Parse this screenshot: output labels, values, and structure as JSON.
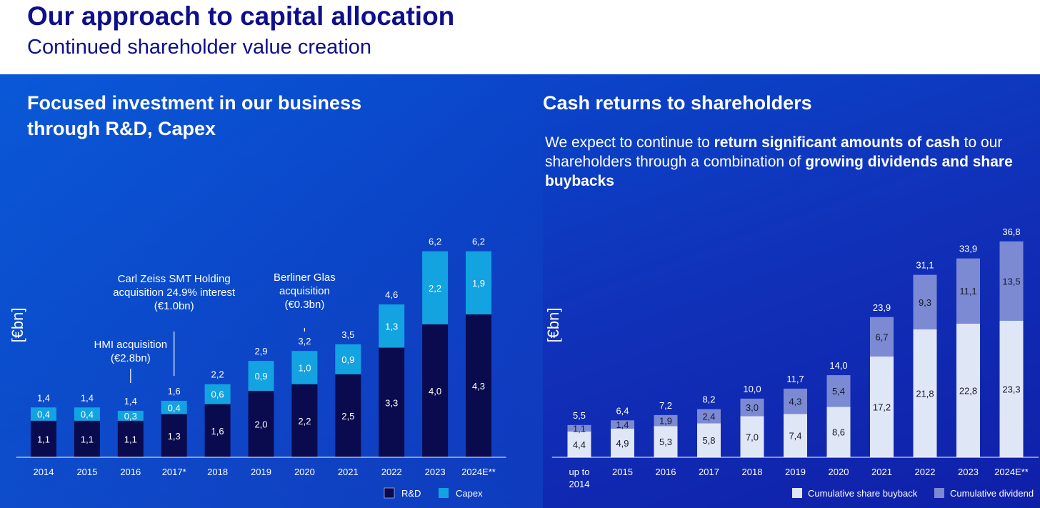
{
  "header": {
    "title": "Our approach to capital allocation",
    "subtitle": "Continued shareholder value creation"
  },
  "left": {
    "heading_line1": "Focused investment in our business",
    "heading_line2": "through R&D, Capex"
  },
  "right": {
    "heading": "Cash returns to shareholders",
    "para_1": "We expect to continue to ",
    "para_bold_1": "return significant amounts of cash",
    "para_2": " to our shareholders through a combination of ",
    "para_bold_2": "growing dividends and share buybacks"
  },
  "colors": {
    "rd": "#0a0b4e",
    "capex": "#12a3e0",
    "buyback": "#dfe6f5",
    "dividend": "#7b8ad2"
  },
  "chart_data": [
    {
      "type": "bar",
      "stacked": true,
      "ylabel": "[€bn]",
      "categories": [
        "2014",
        "2015",
        "2016",
        "2017*",
        "2018",
        "2019",
        "2020",
        "2021",
        "2022",
        "2023",
        "2024E**"
      ],
      "series": [
        {
          "name": "R&D",
          "values": [
            1.1,
            1.1,
            1.1,
            1.3,
            1.6,
            2.0,
            2.2,
            2.5,
            3.3,
            4.0,
            4.3
          ],
          "labels": [
            "1,1",
            "1,1",
            "1,1",
            "1,3",
            "1,6",
            "2,0",
            "2,2",
            "2,5",
            "3,3",
            "4,0",
            "4,3"
          ]
        },
        {
          "name": "Capex",
          "values": [
            0.4,
            0.4,
            0.3,
            0.4,
            0.6,
            0.9,
            1.0,
            0.9,
            1.3,
            2.2,
            1.9
          ],
          "labels": [
            "0,4",
            "0,4",
            "0,3",
            "0,4",
            "0,6",
            "0,9",
            "1,0",
            "0,9",
            "1,3",
            "2,2",
            "1,9"
          ]
        }
      ],
      "totals": [
        "1,4",
        "1,4",
        "1,4",
        "1,6",
        "2,2",
        "2,9",
        "3,2",
        "3,5",
        "4,6",
        "6,2",
        "6,2"
      ],
      "total_values": [
        1.4,
        1.4,
        1.4,
        1.6,
        2.2,
        2.9,
        3.2,
        3.5,
        4.6,
        6.2,
        6.2
      ],
      "annotations": [
        {
          "category": "2016",
          "lines": [
            "HMI acquisition",
            "(€2.8bn)"
          ]
        },
        {
          "category": "2017*",
          "lines": [
            "Carl Zeiss SMT Holding",
            "acquisition 24.9% interest",
            "(€1.0bn)"
          ]
        },
        {
          "category": "2020",
          "lines": [
            "Berliner Glas",
            "acquisition",
            "(€0.3bn)"
          ]
        }
      ],
      "legend": [
        "R&D",
        "Capex"
      ]
    },
    {
      "type": "bar",
      "stacked": true,
      "ylabel": "[€bn]",
      "categories": [
        [
          "up to",
          "2014"
        ],
        [
          "2015"
        ],
        [
          "2016"
        ],
        [
          "2017"
        ],
        [
          "2018"
        ],
        [
          "2019"
        ],
        [
          "2020"
        ],
        [
          "2021"
        ],
        [
          "2022"
        ],
        [
          "2023"
        ],
        [
          "2024E**"
        ]
      ],
      "series": [
        {
          "name": "Cumulative share buyback",
          "values": [
            4.4,
            4.9,
            5.3,
            5.8,
            7.0,
            7.4,
            8.6,
            17.2,
            21.8,
            22.8,
            23.3
          ],
          "labels": [
            "4,4",
            "4,9",
            "5,3",
            "5,8",
            "7,0",
            "7,4",
            "8,6",
            "17,2",
            "21,8",
            "22,8",
            "23,3"
          ]
        },
        {
          "name": "Cumulative dividend",
          "values": [
            1.1,
            1.4,
            1.9,
            2.4,
            3.0,
            4.3,
            5.4,
            6.7,
            9.3,
            11.1,
            13.5
          ],
          "labels": [
            "1,1",
            "1,4",
            "1,9",
            "2,4",
            "3,0",
            "4,3",
            "5,4",
            "6,7",
            "9,3",
            "11,1",
            "13,5"
          ]
        }
      ],
      "totals": [
        "5,5",
        "6,4",
        "7,2",
        "8,2",
        "10,0",
        "11,7",
        "14,0",
        "23,9",
        "31,1",
        "33,9",
        "36,8"
      ],
      "total_values": [
        5.5,
        6.4,
        7.2,
        8.2,
        10.0,
        11.7,
        14.0,
        23.9,
        31.1,
        33.9,
        36.8
      ],
      "legend": [
        "Cumulative share buyback",
        "Cumulative dividend"
      ]
    }
  ]
}
